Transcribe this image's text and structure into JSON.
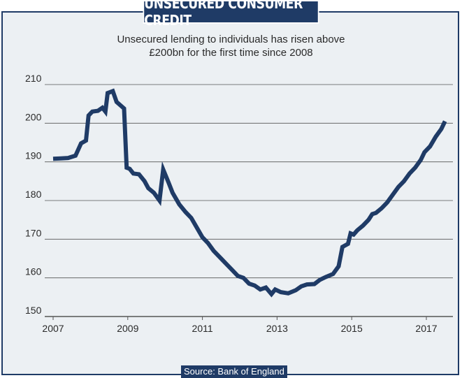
{
  "header": {
    "title": "UNSECURED CONSUMER CREDIT"
  },
  "footer": {
    "source": "Source: Bank of England"
  },
  "colors": {
    "line": "#1f3b66",
    "background": "#ecf0f3",
    "banner": "#1f3b66",
    "grid": "#555555"
  },
  "chart_data": {
    "type": "line",
    "title": "UNSECURED CONSUMER CREDIT",
    "subtitle_lines": [
      "Unsecured lending to individuals has risen above",
      "£200bn for the first time since 2008"
    ],
    "xlabel": "",
    "ylabel": "",
    "xlim": [
      2007,
      2017.5
    ],
    "ylim": [
      150,
      210
    ],
    "x_ticks": [
      2007,
      2009,
      2011,
      2013,
      2015,
      2017
    ],
    "y_ticks": [
      150,
      160,
      170,
      180,
      190,
      200,
      210
    ],
    "grid": "horizontal",
    "legend": "none",
    "series": [
      {
        "values": [
          [
            2007.0,
            190.8
          ],
          [
            2007.2,
            190.9
          ],
          [
            2007.4,
            191.0
          ],
          [
            2007.6,
            191.6
          ],
          [
            2007.75,
            194.8
          ],
          [
            2007.88,
            195.5
          ],
          [
            2007.95,
            202.0
          ],
          [
            2008.05,
            203.0
          ],
          [
            2008.2,
            203.2
          ],
          [
            2008.32,
            204.0
          ],
          [
            2008.4,
            203.0
          ],
          [
            2008.46,
            207.8
          ],
          [
            2008.6,
            208.3
          ],
          [
            2008.7,
            205.5
          ],
          [
            2008.9,
            203.8
          ],
          [
            2008.97,
            188.5
          ],
          [
            2009.05,
            188.2
          ],
          [
            2009.15,
            187.0
          ],
          [
            2009.3,
            186.8
          ],
          [
            2009.45,
            185.0
          ],
          [
            2009.55,
            183.2
          ],
          [
            2009.7,
            182.0
          ],
          [
            2009.85,
            180.0
          ],
          [
            2009.95,
            188.0
          ],
          [
            2010.1,
            184.5
          ],
          [
            2010.2,
            182.0
          ],
          [
            2010.38,
            179.0
          ],
          [
            2010.55,
            177.0
          ],
          [
            2010.7,
            175.5
          ],
          [
            2010.85,
            173.0
          ],
          [
            2011.0,
            170.5
          ],
          [
            2011.15,
            169.0
          ],
          [
            2011.3,
            167.0
          ],
          [
            2011.5,
            165.0
          ],
          [
            2011.65,
            163.5
          ],
          [
            2011.8,
            162.0
          ],
          [
            2011.95,
            160.5
          ],
          [
            2012.1,
            160.0
          ],
          [
            2012.25,
            158.5
          ],
          [
            2012.4,
            158.0
          ],
          [
            2012.55,
            157.0
          ],
          [
            2012.7,
            157.5
          ],
          [
            2012.85,
            155.8
          ],
          [
            2012.95,
            157.0
          ],
          [
            2013.1,
            156.3
          ],
          [
            2013.3,
            156.0
          ],
          [
            2013.5,
            156.8
          ],
          [
            2013.65,
            157.8
          ],
          [
            2013.8,
            158.3
          ],
          [
            2014.0,
            158.4
          ],
          [
            2014.15,
            159.5
          ],
          [
            2014.3,
            160.2
          ],
          [
            2014.5,
            161.0
          ],
          [
            2014.65,
            163.0
          ],
          [
            2014.75,
            168.0
          ],
          [
            2014.9,
            168.8
          ],
          [
            2014.97,
            171.5
          ],
          [
            2015.05,
            171.2
          ],
          [
            2015.15,
            172.3
          ],
          [
            2015.3,
            173.5
          ],
          [
            2015.45,
            175.0
          ],
          [
            2015.55,
            176.5
          ],
          [
            2015.65,
            176.8
          ],
          [
            2015.8,
            178.0
          ],
          [
            2015.95,
            179.5
          ],
          [
            2016.1,
            181.5
          ],
          [
            2016.25,
            183.5
          ],
          [
            2016.4,
            185.0
          ],
          [
            2016.55,
            187.0
          ],
          [
            2016.7,
            188.5
          ],
          [
            2016.85,
            190.5
          ],
          [
            2016.95,
            192.5
          ],
          [
            2017.1,
            194.0
          ],
          [
            2017.25,
            196.5
          ],
          [
            2017.4,
            198.5
          ],
          [
            2017.5,
            200.5
          ]
        ]
      }
    ]
  }
}
